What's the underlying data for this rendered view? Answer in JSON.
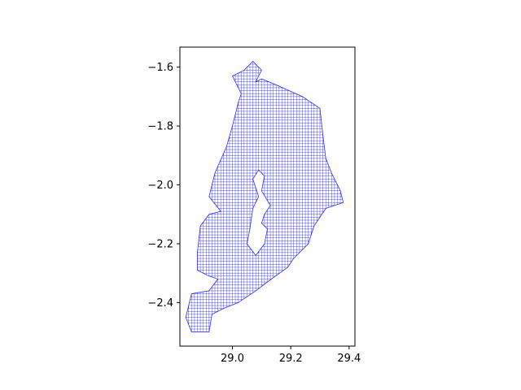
{
  "chart_data": {
    "type": "mesh",
    "title": "",
    "xlabel": "",
    "ylabel": "",
    "xlim": [
      28.82,
      29.42
    ],
    "ylim": [
      -2.548,
      -1.532
    ],
    "x_ticks": [
      29.0,
      29.2,
      29.4
    ],
    "x_tick_labels": [
      "29.0",
      "29.2",
      "29.4"
    ],
    "y_ticks": [
      -1.6,
      -1.8,
      -2.0,
      -2.2,
      -2.4
    ],
    "y_tick_labels": [
      "−1.6",
      "−1.8",
      "−2.0",
      "−2.2",
      "−2.4"
    ],
    "grid": false,
    "legend": "none",
    "mesh_color": "#0000ff",
    "mesh_cell_size": 0.01,
    "outline": [
      [
        29.07,
        -1.58
      ],
      [
        29.1,
        -1.61
      ],
      [
        29.08,
        -1.65
      ],
      [
        29.1,
        -1.64
      ],
      [
        29.15,
        -1.66
      ],
      [
        29.24,
        -1.7
      ],
      [
        29.3,
        -1.74
      ],
      [
        29.31,
        -1.83
      ],
      [
        29.32,
        -1.91
      ],
      [
        29.34,
        -1.96
      ],
      [
        29.37,
        -2.02
      ],
      [
        29.38,
        -2.06
      ],
      [
        29.32,
        -2.08
      ],
      [
        29.28,
        -2.14
      ],
      [
        29.26,
        -2.2
      ],
      [
        29.21,
        -2.25
      ],
      [
        29.19,
        -2.28
      ],
      [
        29.12,
        -2.33
      ],
      [
        29.08,
        -2.36
      ],
      [
        29.02,
        -2.4
      ],
      [
        28.97,
        -2.42
      ],
      [
        28.93,
        -2.44
      ],
      [
        28.92,
        -2.5
      ],
      [
        28.86,
        -2.5
      ],
      [
        28.84,
        -2.45
      ],
      [
        28.86,
        -2.37
      ],
      [
        28.92,
        -2.36
      ],
      [
        28.95,
        -2.32
      ],
      [
        28.92,
        -2.31
      ],
      [
        28.88,
        -2.29
      ],
      [
        28.88,
        -2.23
      ],
      [
        28.89,
        -2.14
      ],
      [
        28.92,
        -2.1
      ],
      [
        28.96,
        -2.09
      ],
      [
        28.92,
        -2.04
      ],
      [
        28.94,
        -1.96
      ],
      [
        28.98,
        -1.87
      ],
      [
        29.0,
        -1.8
      ],
      [
        29.02,
        -1.72
      ],
      [
        29.03,
        -1.69
      ],
      [
        29.0,
        -1.63
      ],
      [
        29.04,
        -1.61
      ]
    ],
    "hole": [
      [
        29.09,
        -1.95
      ],
      [
        29.11,
        -1.97
      ],
      [
        29.1,
        -2.02
      ],
      [
        29.13,
        -2.07
      ],
      [
        29.11,
        -2.1
      ],
      [
        29.1,
        -2.13
      ],
      [
        29.12,
        -2.15
      ],
      [
        29.11,
        -2.2
      ],
      [
        29.08,
        -2.24
      ],
      [
        29.05,
        -2.2
      ],
      [
        29.06,
        -2.15
      ],
      [
        29.07,
        -2.08
      ],
      [
        29.09,
        -2.04
      ],
      [
        29.07,
        -1.98
      ]
    ]
  }
}
